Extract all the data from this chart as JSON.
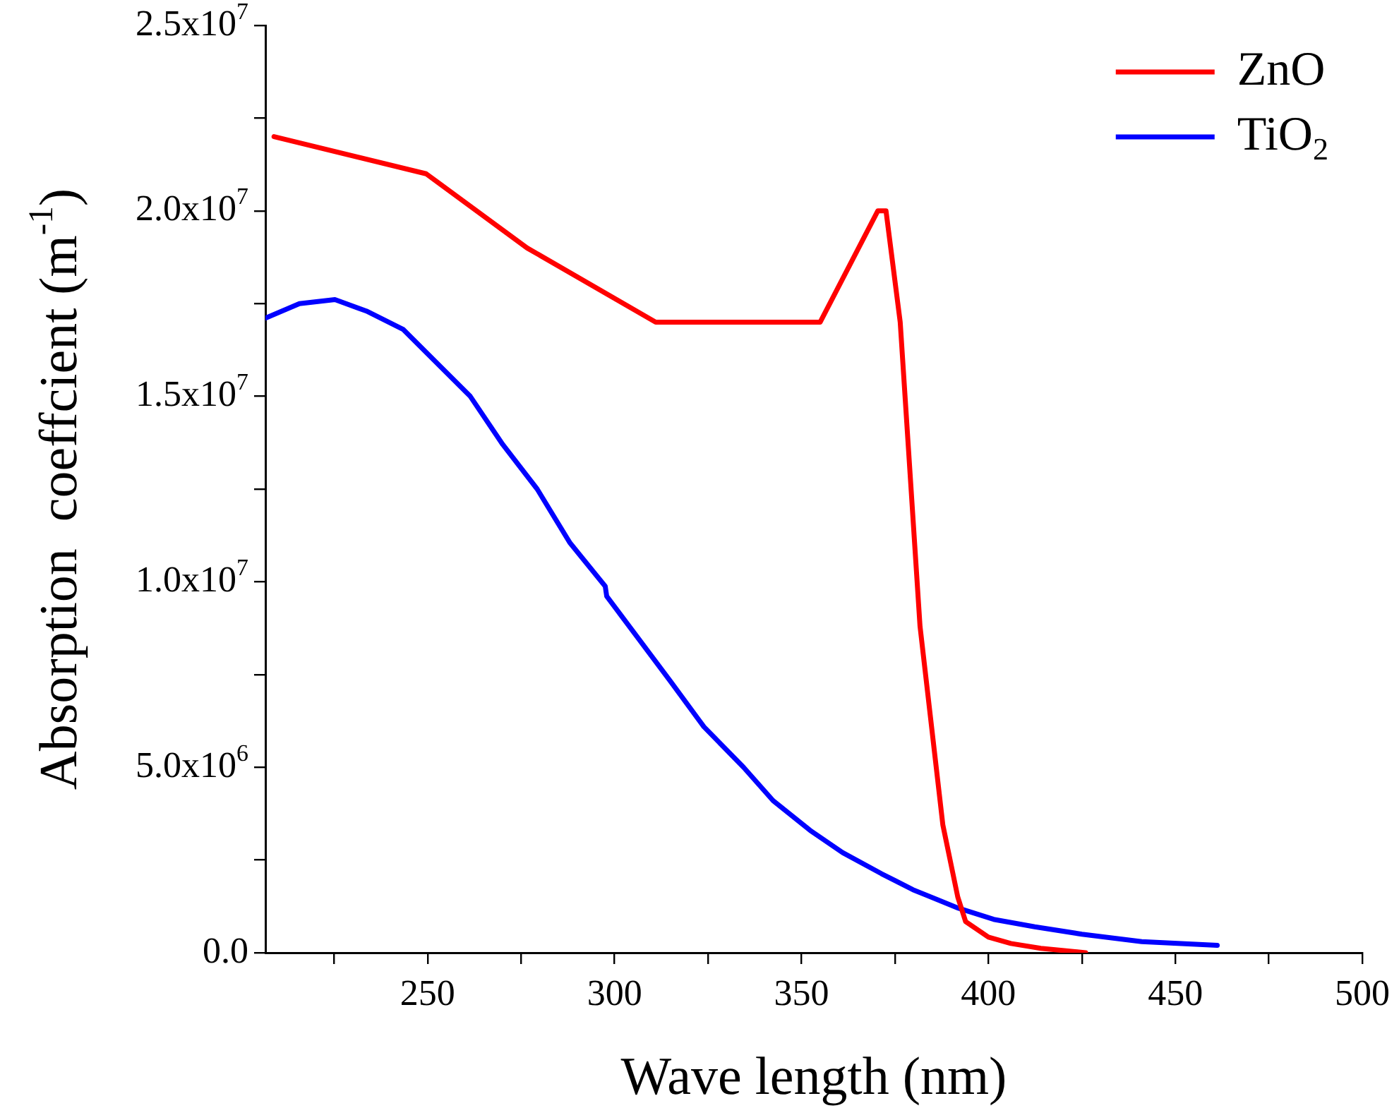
{
  "chart_data": {
    "type": "line",
    "xlabel": "Wave length (nm)",
    "ylabel": "Absorption  coeffcient (m$^{-1}$)",
    "xlim": [
      206.6,
      500
    ],
    "ylim": [
      0,
      25000000
    ],
    "xticks": [
      {
        "value": 225,
        "label": null
      },
      250,
      {
        "value": 275,
        "label": null
      },
      300,
      {
        "value": 325,
        "label": null
      },
      350,
      {
        "value": 375,
        "label": null
      },
      400,
      {
        "value": 425,
        "label": null
      },
      450,
      {
        "value": 475,
        "label": null
      },
      500
    ],
    "yticks": [
      {
        "value": 0,
        "label": "0.0"
      },
      {
        "value": 2500000,
        "label": null
      },
      {
        "value": 5000000,
        "label": "5.0x10$^{6}$"
      },
      {
        "value": 7500000,
        "label": null
      },
      {
        "value": 10000000,
        "label": "1.0x10$^{7}$"
      },
      {
        "value": 12500000,
        "label": null
      },
      {
        "value": 15000000,
        "label": "1.5x10$^{7}$"
      },
      {
        "value": 17500000,
        "label": null
      },
      {
        "value": 20000000,
        "label": "2.0x10$^{7}$"
      },
      {
        "value": 22500000,
        "label": null
      },
      {
        "value": 25000000,
        "label": "2.5x10$^{7}$"
      }
    ],
    "legend": "top right",
    "grid": false,
    "marker": "none",
    "line_style": "solid",
    "series": [
      {
        "name": "ZnO",
        "color": "#ff0000",
        "x": [
          208.9,
          249.6,
          276.6,
          311,
          355,
          370.4,
          372.6,
          376.4,
          381.7,
          387.8,
          391.8,
          393.9,
          400,
          406,
          414,
          426
        ],
        "values": [
          22000000,
          21000000,
          19000000,
          17000000,
          17000000,
          20000000,
          20000000,
          17000000,
          8800000,
          3450000,
          1500000,
          840000,
          420000,
          250000,
          120000,
          0
        ]
      },
      {
        "name": "TiO$_{2}$",
        "color": "#0000ff",
        "x": [
          206.6,
          215.7,
          225.2,
          233.6,
          243.5,
          261.4,
          270.1,
          279.3,
          288,
          297.5,
          297.9,
          314.7,
          323.9,
          334.5,
          342.4,
          352.3,
          361,
          371.4,
          379.8,
          392,
          401.4,
          412.4,
          425,
          441,
          461.2
        ],
        "values": [
          17110000,
          17500000,
          17610000,
          17300000,
          16800000,
          15000000,
          13700000,
          12500000,
          11060000,
          9880000,
          9610000,
          7350000,
          6090000,
          5000000,
          4100000,
          3300000,
          2700000,
          2130000,
          1700000,
          1200000,
          900000,
          700000,
          500000,
          300000,
          200000
        ]
      }
    ]
  }
}
